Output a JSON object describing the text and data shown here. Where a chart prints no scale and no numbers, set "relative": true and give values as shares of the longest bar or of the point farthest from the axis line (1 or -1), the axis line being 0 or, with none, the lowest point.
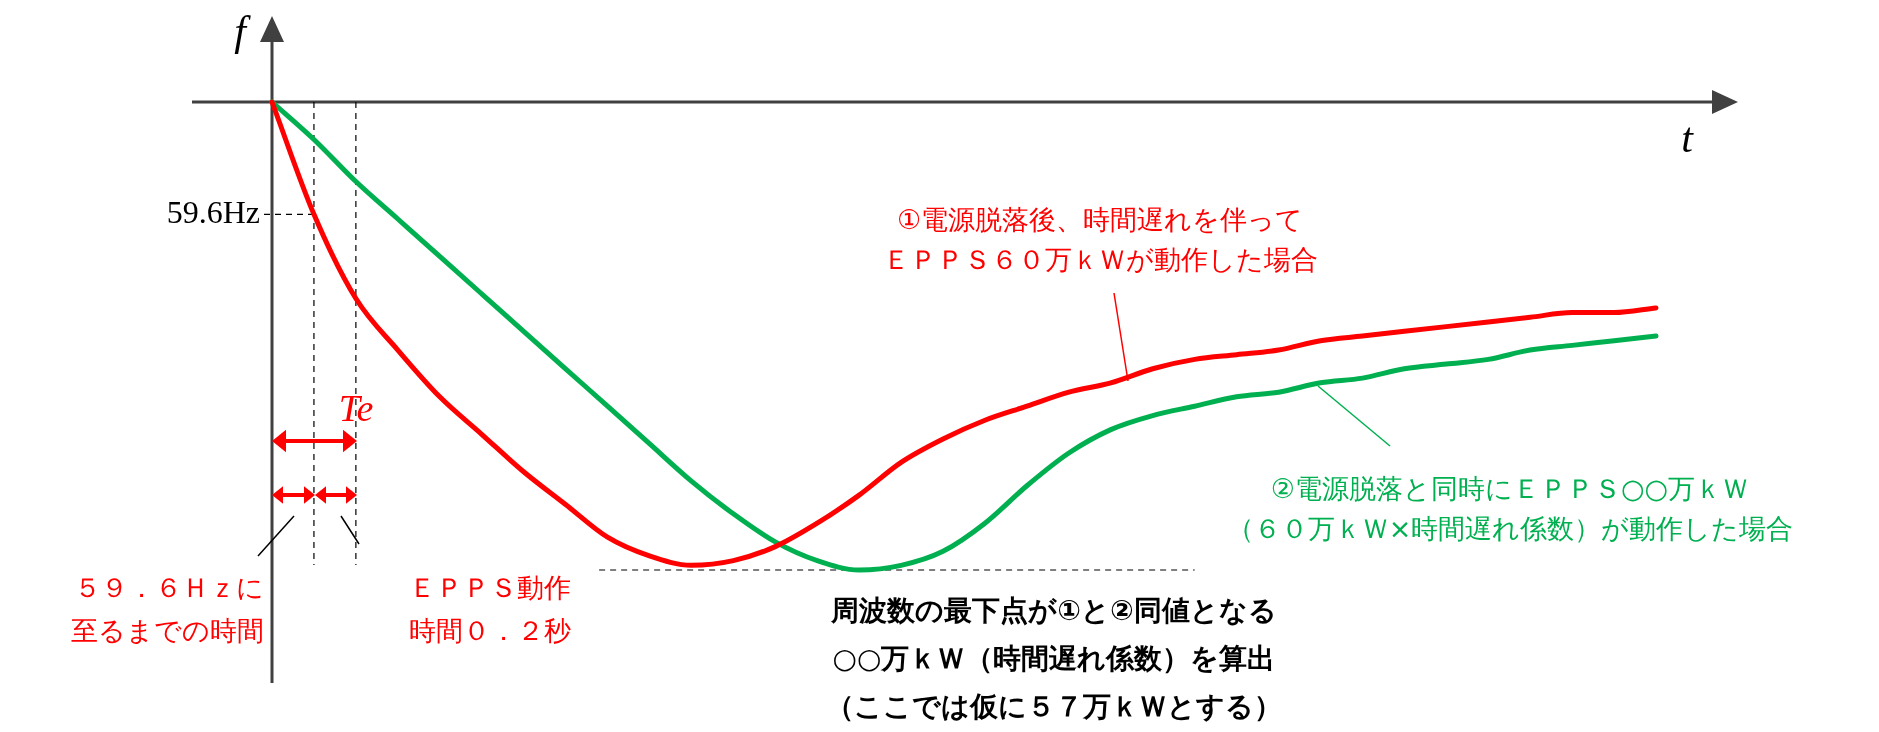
{
  "chart_data": {
    "type": "line",
    "relative": true,
    "xlabel": "t",
    "ylabel": "f",
    "tick_labels": false,
    "grid": false,
    "marker": "none",
    "line_style": "solid",
    "categories": [
      null,
      null,
      null,
      null,
      null,
      null,
      null,
      null,
      null,
      null,
      null,
      null,
      null,
      null,
      null,
      null,
      null,
      null,
      null,
      null,
      null,
      null,
      null,
      null,
      null,
      null,
      null,
      null,
      null,
      null,
      null,
      null,
      null,
      null
    ],
    "series": [
      {
        "name": "①電源脱落後、時間遅れを伴ってＥＰＰＳ６０万ｋＷが動作した場合",
        "color": "#ff0000",
        "values": [
          0,
          -0.24,
          -0.42,
          -0.53,
          -0.63,
          -0.71,
          -0.79,
          -0.86,
          -0.93,
          -0.97,
          -0.99,
          -0.98,
          -0.95,
          -0.9,
          -0.84,
          -0.77,
          -0.72,
          -0.68,
          -0.65,
          -0.62,
          -0.6,
          -0.57,
          -0.55,
          -0.54,
          -0.53,
          -0.51,
          -0.5,
          -0.49,
          -0.48,
          -0.47,
          -0.46,
          -0.45,
          -0.45,
          -0.44
        ]
      },
      {
        "name": "②電源脱落と同時にＥＰＰＳ○○万ｋＷ（６０万ｋＷ×時間遅れ係数）が動作した場合",
        "color": "#00b050",
        "values": [
          0,
          -0.08,
          -0.17,
          -0.25,
          -0.33,
          -0.41,
          -0.49,
          -0.57,
          -0.65,
          -0.73,
          -0.81,
          -0.88,
          -0.94,
          -0.98,
          -1,
          -0.99,
          -0.96,
          -0.9,
          -0.82,
          -0.75,
          -0.7,
          -0.67,
          -0.65,
          -0.63,
          -0.62,
          -0.6,
          -0.59,
          -0.57,
          -0.56,
          -0.55,
          -0.53,
          -0.52,
          -0.51,
          -0.5
        ]
      }
    ],
    "ref_lines": [
      {
        "axis": "y",
        "value": -0.24,
        "label": "59.6Hz",
        "line_style": "dashed"
      },
      {
        "axis": "y",
        "value": -1,
        "line_style": "dashed"
      }
    ],
    "annotations": [
      "Te",
      "５９．６Ｈｚに至るまでの時間",
      "ＥＰＰＳ動作時間０．２秒",
      "周波数の最下点が①と②同値となる○○万ｋＷ（時間遅れ係数）を算出（ここでは仮に５７万ｋＷとする）"
    ]
  }
}
